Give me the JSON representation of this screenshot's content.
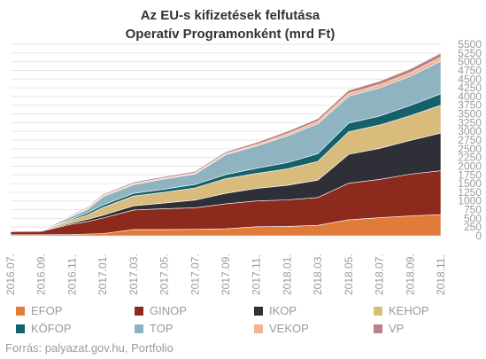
{
  "chart_data": {
    "type": "area",
    "stacked": true,
    "title_line1": "Az EU-s kifizetések felfutása",
    "title_line2": "Operatív Programonként (mrd Ft)",
    "source": "Forrás: palyazat.gov.hu, Portfolio",
    "ylim": [
      0,
      5500
    ],
    "yticks": [
      "0",
      "250",
      "500",
      "750",
      "1000",
      "1250",
      "1500",
      "1750",
      "2000",
      "2250",
      "2500",
      "2750",
      "3000",
      "3250",
      "3500",
      "3750",
      "4000",
      "4250",
      "4500",
      "4750",
      "5000",
      "5250",
      "5500"
    ],
    "grid": true,
    "legend_position": "bottom",
    "x_tick_labels": [
      "2016.07.",
      "2016.09.",
      "2016.11.",
      "2017.01.",
      "2017.03.",
      "2017.05.",
      "2017.07.",
      "2017.09.",
      "2017.11.",
      "2018.01.",
      "2018.03.",
      "2018.05.",
      "2018.07.",
      "2018.09.",
      "2018.11."
    ],
    "x_months": [
      0,
      2,
      4,
      5,
      6,
      8,
      10,
      12,
      14,
      16,
      18,
      20,
      22,
      24,
      26,
      28
    ],
    "series": [
      {
        "name": "EFOP",
        "color": "#e07b39",
        "values": [
          30,
          30,
          35,
          50,
          60,
          180,
          180,
          185,
          200,
          260,
          270,
          300,
          460,
          520,
          570,
          610
        ]
      },
      {
        "name": "GINOP",
        "color": "#8b2a1d",
        "values": [
          90,
          100,
          300,
          360,
          450,
          560,
          600,
          620,
          720,
          740,
          760,
          800,
          1050,
          1100,
          1200,
          1260
        ]
      },
      {
        "name": "IKOP",
        "color": "#2f3037",
        "values": [
          5,
          10,
          40,
          60,
          80,
          120,
          160,
          220,
          300,
          360,
          420,
          500,
          830,
          890,
          970,
          1080
        ]
      },
      {
        "name": "KEHOP",
        "color": "#d9bb7c",
        "values": [
          5,
          10,
          80,
          130,
          220,
          280,
          310,
          350,
          420,
          430,
          470,
          540,
          650,
          670,
          710,
          800
        ]
      },
      {
        "name": "KÖFOP",
        "color": "#15616b",
        "values": [
          0,
          5,
          30,
          60,
          70,
          80,
          90,
          100,
          120,
          150,
          180,
          220,
          250,
          260,
          290,
          330
        ]
      },
      {
        "name": "TOP",
        "color": "#8fb3c0",
        "values": [
          0,
          5,
          80,
          100,
          240,
          250,
          290,
          300,
          570,
          640,
          770,
          860,
          770,
          810,
          840,
          940
        ]
      },
      {
        "name": "VEKOP",
        "color": "#f3b48f",
        "values": [
          0,
          0,
          20,
          30,
          30,
          30,
          30,
          30,
          30,
          40,
          60,
          70,
          80,
          90,
          100,
          110
        ]
      },
      {
        "name": "VP",
        "color": "#bd8089",
        "values": [
          0,
          0,
          25,
          30,
          40,
          40,
          40,
          45,
          50,
          60,
          70,
          80,
          90,
          100,
          110,
          120
        ]
      }
    ]
  }
}
